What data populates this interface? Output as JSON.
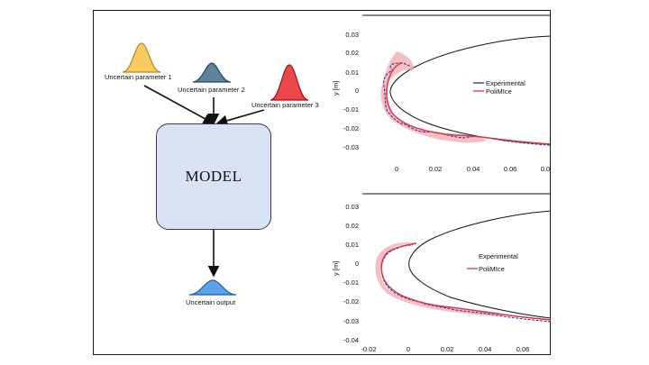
{
  "colors": {
    "param1": "#f6c243",
    "param2": "#3f6e8e",
    "param3": "#e8262a",
    "output": "#3f8fe0",
    "model_fill": "#dae3f3",
    "experimental": "#1f2fb8",
    "polimice": "#e0313a",
    "band": "#f4a3a8"
  },
  "diagram": {
    "inputs": [
      {
        "label": "Uncertain parameter 1"
      },
      {
        "label": "Uncertain parameter 2"
      },
      {
        "label": "Uncertain parameter 3"
      }
    ],
    "model_label": "MODEL",
    "output_label": "Uncertain output"
  },
  "plots": {
    "top": {
      "y_ticks": [
        "0.03",
        "0.02",
        "0.01",
        "0",
        "-0.01",
        "-0.02",
        "-0.03"
      ],
      "x_ticks": [
        "0",
        "0.02",
        "0.04",
        "0.06",
        "0.0"
      ],
      "ylabel": "y [m]",
      "legend": [
        "Experimental",
        "PoliMIce"
      ]
    },
    "bottom": {
      "y_ticks": [
        "0.03",
        "0.02",
        "0.01",
        "0",
        "-0.01",
        "-0.02",
        "-0.03",
        "-0.04"
      ],
      "x_ticks": [
        "-0.02",
        "0",
        "0.02",
        "0.04",
        "0.06"
      ],
      "ylabel": "y [m]",
      "legend": [
        "Experimental",
        "PoliMIce"
      ]
    }
  }
}
